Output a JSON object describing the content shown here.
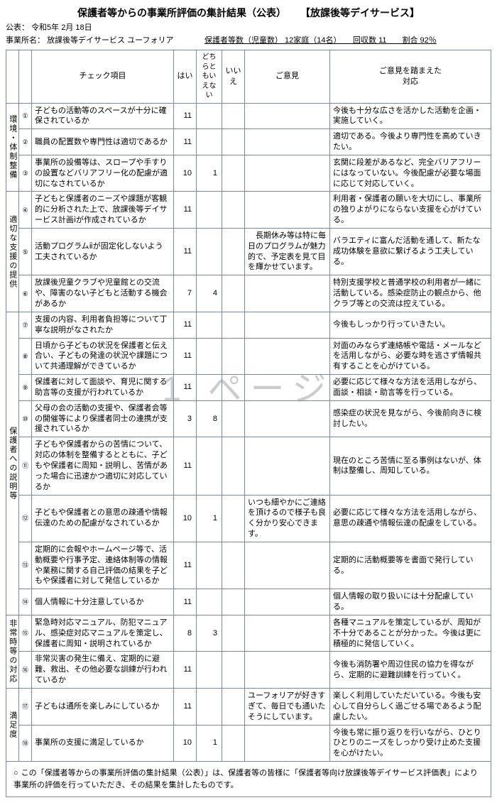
{
  "title": "保護者等からの事業所評価の集計結果（公表）",
  "subtitle": "【放課後等デイサービス】",
  "publish_label": "公表：",
  "publish_date": "令和5年 2月 18日",
  "biz_label": "事業所名：",
  "biz_name": "放課後等デイサービス ユーフォリア",
  "guardian_info": "保護者等数（児童数） 12家庭（14名）　　回収数 11　　割合 92％",
  "watermark": "1 ページ",
  "headers": {
    "item": "チェック項目",
    "hai": "はい",
    "dochira": "どちらともいえない",
    "iie": "いいえ",
    "opinion": "ご意見",
    "response": "ご意見を踏まえた\n対応"
  },
  "categories": [
    {
      "label": "環境・体制整備",
      "rows": [
        {
          "no": "①",
          "item": "子どもの活動等のスペースが十分に確保されているか",
          "hai": "11",
          "do": "",
          "iie": "",
          "op": "",
          "resp": "今後も十分な広さを活かした活動を企画・実施していく。"
        },
        {
          "no": "②",
          "item": "職員の配置数や専門性は適切であるか",
          "hai": "11",
          "do": "",
          "iie": "",
          "op": "",
          "resp": "適切である。今後より専門性を高めていきたい。"
        },
        {
          "no": "③",
          "item": "事業所の設備等は、スロープや手すりの設置などバリアフリー化の配慮が適切になされているか",
          "hai": "10",
          "do": "1",
          "iie": "",
          "op": "",
          "resp": "玄関に段差があるなど、完全バリアフリーにはなっていない。今後配慮が必要な場面に応じて対応していく。"
        }
      ]
    },
    {
      "label": "適切な支援の提供",
      "rows": [
        {
          "no": "④",
          "item": "子どもと保護者のニーズや課題が客観的に分析された上で、放課後等デイサービス計画ⅰが作成されているか",
          "hai": "11",
          "do": "",
          "iie": "",
          "op": "",
          "resp": "利用者・保護者の願いを大切にし、事業所の独りよがりにならない支援を心がけている。"
        },
        {
          "no": "⑤",
          "item": "活動プログラムⅱが固定化しないよう工夫されているか",
          "hai": "11",
          "do": "",
          "iie": "",
          "op": "　長期休み等は特に毎日のプログラムが魅力的で、予定表を見て目を輝かせています。",
          "resp": "バラエティに富んだ活動を通して、新たな成功体験を意欲に繋げるよう工夫している。"
        },
        {
          "no": "⑥",
          "item": "放課後児童クラブや児童館との交流や、障害のない子どもと活動する機会があるか",
          "hai": "7",
          "do": "4",
          "iie": "",
          "op": "",
          "resp": "特別支援学校と普通学校の利用者が一緒に活動している。感染症防止の観点から、他クラブ等との交流は控えている。"
        }
      ]
    },
    {
      "label": "保護者への説明等",
      "rows": [
        {
          "no": "⑦",
          "item": "支援の内容、利用者負担等について丁寧な説明がなされたか",
          "hai": "11",
          "do": "",
          "iie": "",
          "op": "",
          "resp": "今後もしっかり行っていきたい。"
        },
        {
          "no": "⑧",
          "item": "日頃から子どもの状況を保護者と伝え合い、子どもの発達の状況や課題について共通理解ができているか",
          "hai": "11",
          "do": "",
          "iie": "",
          "op": "",
          "resp": "対面のみならず連絡帳や電話・メールなどを活用しながら、必要な時を逃さず情報共有することを心がけている。"
        },
        {
          "no": "⑨",
          "item": "保護者に対して面談や、育児に関する助言等の支援が行われているか",
          "hai": "11",
          "do": "",
          "iie": "",
          "op": "",
          "resp": "必要に応じて様々な方法を活用しながら、面談・相談・助言等を行っている。"
        },
        {
          "no": "⑩",
          "item": "父母の会の活動の支援や、保護者会等の開催等により保護者同士の連携が支援されているか",
          "hai": "3",
          "do": "8",
          "iie": "",
          "op": "",
          "resp": "感染症の状況を見ながら、今後前向きに検討したい。"
        },
        {
          "no": "⑪",
          "item": "子どもや保護者からの苦情について、対応の体制を整備するとともに、子どもや保護者に周知・説明し、苦情があった場合に迅速かつ適切に対応しているか",
          "hai": "11",
          "do": "",
          "iie": "",
          "op": "",
          "resp": "現在のところ苦情に至る事例はないが、体制は整備し、周知している。"
        },
        {
          "no": "⑫",
          "item": "子どもや保護者との意思の疎通や情報伝達のための配慮がなされているか",
          "hai": "10",
          "do": "1",
          "iie": "",
          "op": "いつも細やかにご連絡を頂けるので様子も良く分かり安心できます。",
          "resp": "必要に応じて様々な方法を活用しながら、意思の疎通や情報伝達の配慮をしている。"
        },
        {
          "no": "⑬",
          "item": "定期的に会報やホームページ等で、活動概要や行事予定、連絡体制等の情報や業務に関する自己評価の結果を子どもや保護者に対して発信しているか",
          "hai": "11",
          "do": "",
          "iie": "",
          "op": "",
          "resp": "定期的に活動概要等を書面で発行している。"
        },
        {
          "no": "⑭",
          "item": "個人情報に十分注意しているか",
          "hai": "11",
          "do": "",
          "iie": "",
          "op": "",
          "resp": "個人情報の取り扱いには十分配慮している。"
        }
      ]
    },
    {
      "label": "非常時等の対応",
      "rows": [
        {
          "no": "⑮",
          "item": "緊急時対応マニュアル、防犯マニュアル、感染症対応マニュアルを策定し、保護者に周知・説明されているか",
          "hai": "8",
          "do": "3",
          "iie": "",
          "op": "",
          "resp": "各種マニュアルを策定しているが、周知が不十分であることが分かった。今後は更に積極的に発信していく。"
        },
        {
          "no": "⑯",
          "item": "非常災害の発生に備え、定期的に避難、救出、その他必要な訓練が行われているか",
          "hai": "11",
          "do": "",
          "iie": "",
          "op": "",
          "resp": "今後も消防署や周辺住民の協力を得ながら、定期的に避難訓練を行っていく。"
        }
      ]
    },
    {
      "label": "満足度",
      "rows": [
        {
          "no": "⑰",
          "item": "子どもは通所を楽しみにしているか",
          "hai": "11",
          "do": "",
          "iie": "",
          "op": "ユーフォリアが好きすぎて、毎日でも通いたそうにしています。",
          "resp": "楽しく利用していただいている。今後も安心して自分らしく過ごせる場であるよう配慮したい。"
        },
        {
          "no": "⑱",
          "item": "事業所の支援に満足しているか",
          "hai": "10",
          "do": "1",
          "iie": "",
          "op": "",
          "resp": "今後も常に振り返りを行いながら、ひとりひとりのニーズをしっかり受け止めた支援を心がけたい。"
        }
      ]
    }
  ],
  "footer": "この「保護者等からの事業所評価の集計結果（公表）」は、保護者等の皆様に「保護者等向け放課後等デイサービス評価表」により事業所の評価を行っていただき、その結果を集計したものです。"
}
